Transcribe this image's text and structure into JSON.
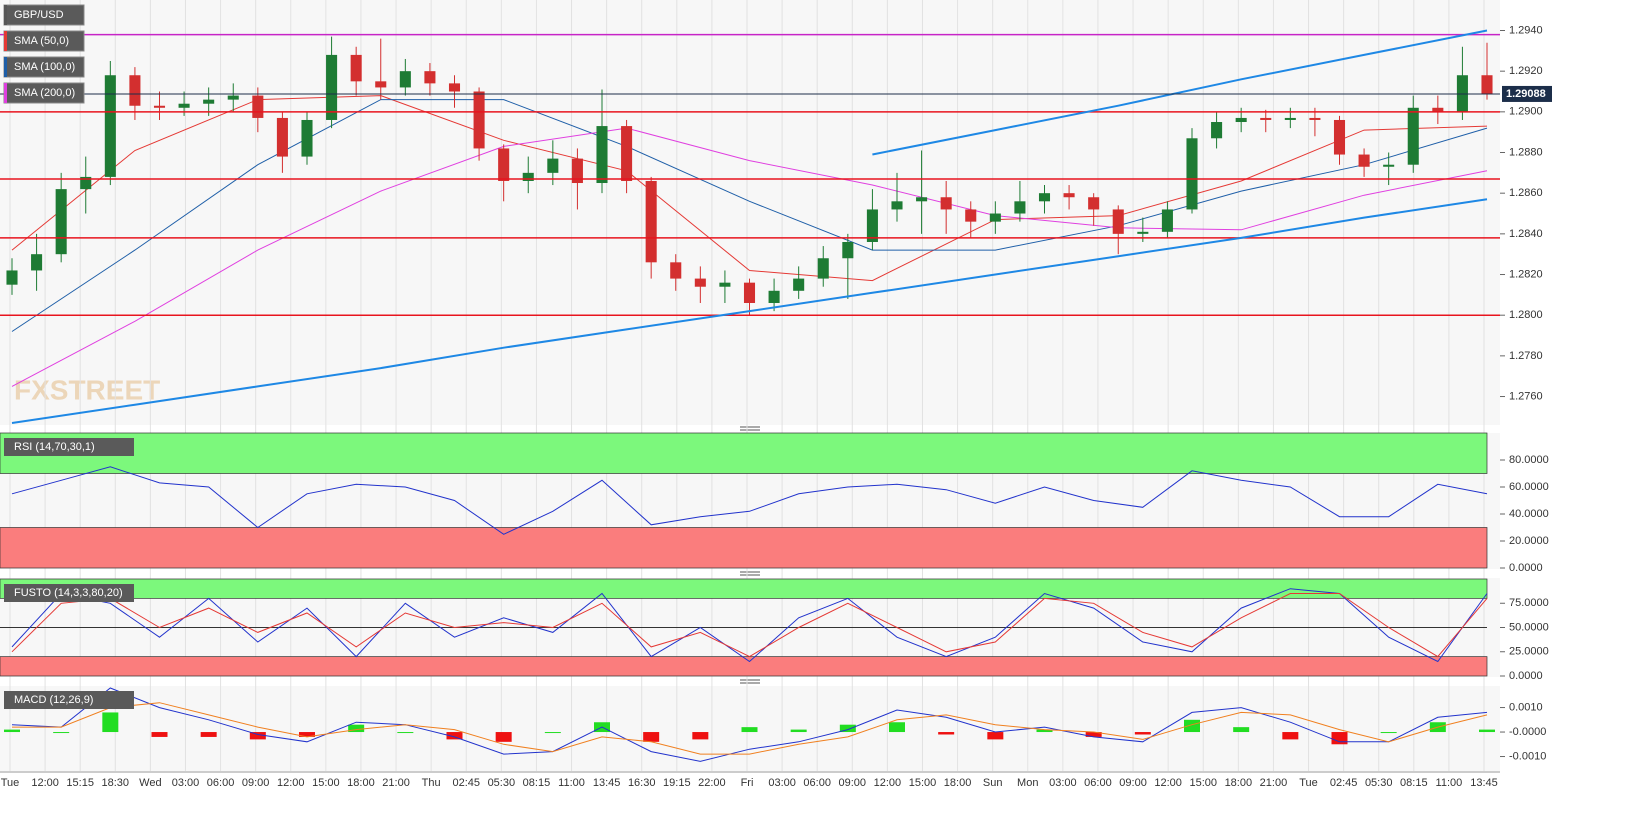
{
  "chart_data": {
    "type": "candlestick",
    "symbol": "GBP/USD",
    "current_price": 1.29088,
    "watermark": "FXSTREET",
    "up_color": "#1e7b34",
    "down_color": "#d32f2f",
    "ylim": [
      1.2746,
      1.2955
    ],
    "yticks": [
      {
        "value": 1.294,
        "label": "1.2940"
      },
      {
        "value": 1.292,
        "label": "1.2920"
      },
      {
        "value": 1.29,
        "label": "1.2900"
      },
      {
        "value": 1.288,
        "label": "1.2880"
      },
      {
        "value": 1.286,
        "label": "1.2860"
      },
      {
        "value": 1.284,
        "label": "1.2840"
      },
      {
        "value": 1.282,
        "label": "1.2820"
      },
      {
        "value": 1.28,
        "label": "1.2800"
      },
      {
        "value": 1.278,
        "label": "1.2780"
      },
      {
        "value": 1.276,
        "label": "1.2760"
      }
    ],
    "categories": [
      "Tue",
      "12:00",
      "15:15",
      "18:30",
      "Wed",
      "03:00",
      "06:00",
      "09:00",
      "12:00",
      "15:00",
      "18:00",
      "21:00",
      "Thu",
      "02:45",
      "05:30",
      "08:15",
      "11:00",
      "13:45",
      "16:30",
      "19:15",
      "22:00",
      "Fri",
      "03:00",
      "06:00",
      "09:00",
      "12:00",
      "15:00",
      "18:00",
      "Sun",
      "Mon",
      "03:00",
      "06:00",
      "09:00",
      "12:00",
      "15:00",
      "18:00",
      "21:00",
      "Tue",
      "02:45",
      "05:30",
      "08:15",
      "11:00",
      "13:45"
    ],
    "candles": [
      [
        1.2815,
        1.2828,
        1.281,
        1.2822
      ],
      [
        1.2822,
        1.284,
        1.2812,
        1.283
      ],
      [
        1.283,
        1.287,
        1.2826,
        1.2862
      ],
      [
        1.2862,
        1.2878,
        1.285,
        1.2868
      ],
      [
        1.2868,
        1.2925,
        1.2864,
        1.2918
      ],
      [
        1.2918,
        1.2922,
        1.2896,
        1.2903
      ],
      [
        1.2903,
        1.291,
        1.2896,
        1.2902
      ],
      [
        1.2902,
        1.291,
        1.2898,
        1.2904
      ],
      [
        1.2904,
        1.2912,
        1.2898,
        1.2906
      ],
      [
        1.2906,
        1.2914,
        1.29,
        1.2908
      ],
      [
        1.2908,
        1.2912,
        1.289,
        1.2897
      ],
      [
        1.2897,
        1.29,
        1.287,
        1.2878
      ],
      [
        1.2878,
        1.29,
        1.2874,
        1.2896
      ],
      [
        1.2896,
        1.2937,
        1.2892,
        1.2928
      ],
      [
        1.2928,
        1.2932,
        1.2908,
        1.2915
      ],
      [
        1.2915,
        1.2936,
        1.2906,
        1.2912
      ],
      [
        1.2912,
        1.2926,
        1.2908,
        1.292
      ],
      [
        1.292,
        1.2924,
        1.2908,
        1.2914
      ],
      [
        1.2914,
        1.2918,
        1.2902,
        1.291
      ],
      [
        1.291,
        1.2912,
        1.2876,
        1.2882
      ],
      [
        1.2882,
        1.2884,
        1.2856,
        1.2866
      ],
      [
        1.2866,
        1.2878,
        1.286,
        1.287
      ],
      [
        1.287,
        1.2886,
        1.2864,
        1.2877
      ],
      [
        1.2877,
        1.2882,
        1.2852,
        1.2865
      ],
      [
        1.2865,
        1.2911,
        1.286,
        1.2893
      ],
      [
        1.2893,
        1.2896,
        1.286,
        1.2866
      ],
      [
        1.2866,
        1.2868,
        1.2818,
        1.2826
      ],
      [
        1.2826,
        1.283,
        1.2812,
        1.2818
      ],
      [
        1.2818,
        1.2824,
        1.2806,
        1.2814
      ],
      [
        1.2814,
        1.2822,
        1.2806,
        1.2816
      ],
      [
        1.2816,
        1.2818,
        1.28,
        1.2806
      ],
      [
        1.2806,
        1.2818,
        1.2802,
        1.2812
      ],
      [
        1.2812,
        1.2824,
        1.2808,
        1.2818
      ],
      [
        1.2818,
        1.2834,
        1.2814,
        1.2828
      ],
      [
        1.2828,
        1.284,
        1.2808,
        1.2836
      ],
      [
        1.2836,
        1.2862,
        1.2832,
        1.2852
      ],
      [
        1.2852,
        1.287,
        1.2846,
        1.2856
      ],
      [
        1.2856,
        1.2881,
        1.284,
        1.2858
      ],
      [
        1.2858,
        1.2866,
        1.284,
        1.2852
      ],
      [
        1.2852,
        1.2856,
        1.2838,
        1.2846
      ],
      [
        1.2846,
        1.2856,
        1.284,
        1.285
      ],
      [
        1.285,
        1.2866,
        1.2846,
        1.2856
      ],
      [
        1.2856,
        1.2864,
        1.285,
        1.286
      ],
      [
        1.286,
        1.2864,
        1.2852,
        1.2858
      ],
      [
        1.2858,
        1.286,
        1.2844,
        1.2852
      ],
      [
        1.2852,
        1.2854,
        1.283,
        1.284
      ],
      [
        1.284,
        1.2848,
        1.2836,
        1.2841
      ],
      [
        1.2841,
        1.2856,
        1.2838,
        1.2852
      ],
      [
        1.2852,
        1.2892,
        1.285,
        1.2887
      ],
      [
        1.2887,
        1.29,
        1.2882,
        1.2895
      ],
      [
        1.2895,
        1.2902,
        1.289,
        1.2897
      ],
      [
        1.2897,
        1.2901,
        1.289,
        1.2896
      ],
      [
        1.2896,
        1.2902,
        1.2892,
        1.2897
      ],
      [
        1.2897,
        1.2902,
        1.2888,
        1.2896
      ],
      [
        1.2896,
        1.2898,
        1.2874,
        1.2879
      ],
      [
        1.2879,
        1.2882,
        1.2868,
        1.2873
      ],
      [
        1.2873,
        1.288,
        1.2864,
        1.2874
      ],
      [
        1.2874,
        1.2908,
        1.287,
        1.2902
      ],
      [
        1.2902,
        1.2908,
        1.2894,
        1.29
      ],
      [
        1.29,
        1.2932,
        1.2896,
        1.2918
      ],
      [
        1.2918,
        1.2934,
        1.2906,
        1.2909
      ]
    ],
    "sma": [
      {
        "name": "SMA (50,0)",
        "color": "#e53935",
        "values": [
          1.2832,
          1.2881,
          1.2906,
          1.2908,
          1.2886,
          1.2871,
          1.2822,
          1.2817,
          1.2847,
          1.2849,
          1.2866,
          1.2891,
          1.2893
        ]
      },
      {
        "name": "SMA (100,0)",
        "color": "#1f5fa8",
        "values": [
          1.2792,
          1.2832,
          1.2874,
          1.2906,
          1.2906,
          1.2883,
          1.2856,
          1.2832,
          1.2832,
          1.2844,
          1.2861,
          1.2874,
          1.2892
        ]
      },
      {
        "name": "SMA (200,0)",
        "color": "#e040e0",
        "values": [
          1.2765,
          1.2797,
          1.2832,
          1.2861,
          1.2883,
          1.2892,
          1.2876,
          1.2864,
          1.2849,
          1.2843,
          1.2842,
          1.2859,
          1.2871
        ]
      }
    ],
    "levels": [
      1.29,
      1.2867,
      1.2838,
      1.28
    ],
    "level_color": "#e8141e",
    "resistance": 1.2938,
    "resistance_color": "#c724c7",
    "trendline_color": "#1e88e5",
    "trendlines": [
      [
        1.2747,
        1.2756,
        1.2765,
        1.2774,
        1.2784,
        1.2793,
        1.2802,
        1.2811,
        1.282,
        1.2829,
        1.2838,
        1.2848,
        1.2857
      ],
      [
        null,
        null,
        null,
        null,
        null,
        null,
        null,
        1.2879,
        1.2891,
        1.2903,
        1.2916,
        1.2928,
        1.294
      ]
    ],
    "panels": [
      {
        "type": "rsi",
        "title": "RSI (14,70,30,1)",
        "ylim": [
          0,
          100
        ],
        "yticks": [
          {
            "value": 80,
            "label": "80.0000"
          },
          {
            "value": 60,
            "label": "60.0000"
          },
          {
            "value": 40,
            "label": "40.0000"
          },
          {
            "value": 20,
            "label": "20.0000"
          },
          {
            "value": 0,
            "label": "0.0000"
          }
        ],
        "upper_zone": [
          70,
          100
        ],
        "lower_zone": [
          0,
          30
        ],
        "series": [
          {
            "color": "#2233cc",
            "values": [
              55,
              65,
              75,
              63,
              60,
              30,
              55,
              62,
              60,
              50,
              25,
              42,
              65,
              32,
              38,
              42,
              55,
              60,
              62,
              58,
              48,
              60,
              50,
              45,
              72,
              65,
              60,
              38,
              38,
              62,
              55
            ]
          }
        ]
      },
      {
        "type": "fusto",
        "title": "FUSTO (14,3,3,80,20)",
        "ylim": [
          0,
          100
        ],
        "yticks": [
          {
            "value": 75,
            "label": "75.0000"
          },
          {
            "value": 50,
            "label": "50.0000"
          },
          {
            "value": 25,
            "label": "25.0000"
          },
          {
            "value": 0,
            "label": "0.0000"
          }
        ],
        "upper_zone": [
          80,
          100
        ],
        "lower_zone": [
          0,
          20
        ],
        "midline": 50,
        "series": [
          {
            "color": "#2233cc",
            "values": [
              30,
              85,
              75,
              40,
              80,
              35,
              70,
              20,
              75,
              40,
              60,
              45,
              85,
              20,
              50,
              15,
              60,
              80,
              40,
              20,
              40,
              85,
              70,
              35,
              25,
              70,
              90,
              85,
              40,
              15,
              85
            ]
          },
          {
            "color": "#e53935",
            "values": [
              25,
              75,
              80,
              50,
              70,
              45,
              65,
              30,
              65,
              50,
              55,
              50,
              75,
              30,
              45,
              20,
              50,
              75,
              50,
              25,
              35,
              80,
              75,
              45,
              30,
              60,
              85,
              85,
              50,
              20,
              80
            ]
          }
        ]
      },
      {
        "type": "macd",
        "title": "MACD (12,26,9)",
        "ylim": [
          -0.00155,
          0.00188
        ],
        "yticks": [
          {
            "value": 0.001,
            "label": "0.0010"
          },
          {
            "value": 0,
            "label": "-0.0000"
          },
          {
            "value": -0.001,
            "label": "-0.0010"
          }
        ],
        "histogram": {
          "up_color": "#22dd22",
          "down_color": "#ee1111",
          "values": [
            0.0001,
            0.0,
            0.0008,
            -0.0002,
            -0.0002,
            -0.0003,
            -0.0002,
            0.0003,
            0.0,
            -0.0003,
            -0.0004,
            0.0,
            0.0004,
            -0.0004,
            -0.0003,
            0.0002,
            0.0001,
            0.0003,
            0.0004,
            -0.0001,
            -0.0003,
            0.0001,
            -0.0002,
            -0.0001,
            0.0005,
            0.0002,
            -0.0003,
            -0.0005,
            0.0,
            0.0004,
            0.0001
          ]
        },
        "series": [
          {
            "color": "#2233cc",
            "values": [
              0.0003,
              0.0002,
              0.0018,
              0.001,
              0.0005,
              -0.0001,
              -0.0004,
              0.0004,
              0.0003,
              -0.0002,
              -0.0009,
              -0.0008,
              0.0002,
              -0.0008,
              -0.0012,
              -0.0007,
              -0.0004,
              0.0001,
              0.0009,
              0.0006,
              0.0,
              0.0002,
              -0.0002,
              -0.0004,
              0.0008,
              0.001,
              0.0004,
              -0.0004,
              -0.0004,
              0.0006,
              0.0008
            ]
          },
          {
            "color": "#f08020",
            "values": [
              0.0002,
              0.0002,
              0.001,
              0.0012,
              0.0007,
              0.0002,
              -0.0002,
              0.0001,
              0.0003,
              0.0001,
              -0.0005,
              -0.0008,
              -0.0002,
              -0.0004,
              -0.0009,
              -0.0009,
              -0.0005,
              -0.0002,
              0.0005,
              0.0007,
              0.0003,
              0.0001,
              0.0,
              -0.0003,
              0.0003,
              0.0008,
              0.0007,
              0.0001,
              -0.0004,
              0.0002,
              0.0007
            ]
          }
        ]
      }
    ]
  }
}
